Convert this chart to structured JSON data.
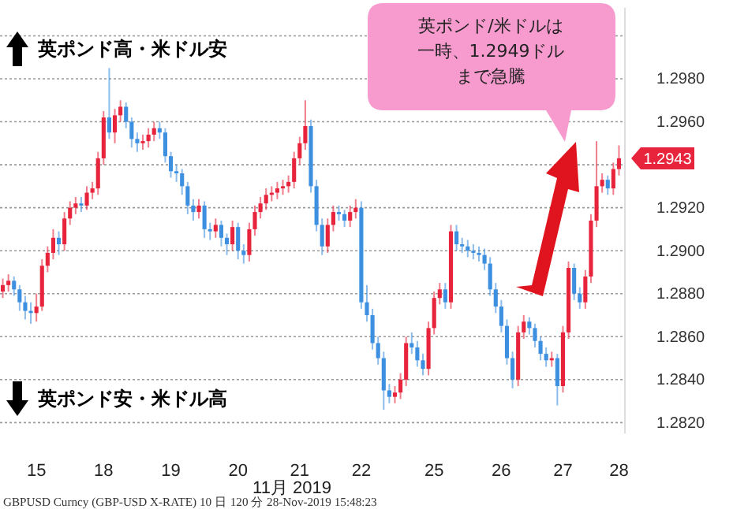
{
  "chart_data": {
    "type": "candlestick",
    "categories": [
      null,
      null,
      null,
      null,
      null,
      null,
      "15",
      null,
      null,
      null,
      null,
      null,
      null,
      null,
      null,
      null,
      null,
      null,
      "18",
      null,
      null,
      null,
      null,
      null,
      null,
      null,
      null,
      null,
      null,
      null,
      "19",
      null,
      null,
      null,
      null,
      null,
      null,
      null,
      null,
      null,
      null,
      null,
      "20",
      null,
      null,
      null,
      null,
      null,
      null,
      null,
      null,
      null,
      null,
      "21",
      null,
      null,
      null,
      null,
      null,
      null,
      null,
      null,
      null,
      null,
      "22",
      null,
      null,
      null,
      null,
      null,
      null,
      null,
      null,
      null,
      null,
      null,
      null,
      "25",
      null,
      null,
      null,
      null,
      null,
      null,
      null,
      null,
      null,
      null,
      null,
      "26",
      null,
      null,
      null,
      null,
      null,
      null,
      null,
      null,
      null,
      null,
      "27",
      null,
      null,
      null,
      null,
      null,
      null,
      null,
      null,
      null,
      "28"
    ],
    "ohlc": [
      [
        1.2881,
        1.2887,
        1.2878,
        1.2884
      ],
      [
        1.2884,
        1.2889,
        1.2881,
        1.2886
      ],
      [
        1.2886,
        1.2888,
        1.2879,
        1.2882
      ],
      [
        1.2882,
        1.2884,
        1.2872,
        1.2876
      ],
      [
        1.2876,
        1.2879,
        1.2868,
        1.2872
      ],
      [
        1.2872,
        1.2876,
        1.2866,
        1.2871
      ],
      [
        1.2871,
        1.288,
        1.2867,
        1.2874
      ],
      [
        1.2874,
        1.2896,
        1.2872,
        1.2893
      ],
      [
        1.2893,
        1.2902,
        1.289,
        1.2899
      ],
      [
        1.2899,
        1.291,
        1.2896,
        1.2906
      ],
      [
        1.2906,
        1.2909,
        1.2898,
        1.2903
      ],
      [
        1.2903,
        1.2918,
        1.29,
        1.2915
      ],
      [
        1.2915,
        1.2923,
        1.2912,
        1.292
      ],
      [
        1.292,
        1.2925,
        1.2917,
        1.2922
      ],
      [
        1.2922,
        1.2925,
        1.2918,
        1.2921
      ],
      [
        1.2921,
        1.293,
        1.2919,
        1.2927
      ],
      [
        1.2927,
        1.2932,
        1.2924,
        1.2929
      ],
      [
        1.2929,
        1.2946,
        1.2926,
        1.2943
      ],
      [
        1.2943,
        1.2965,
        1.294,
        1.2962
      ],
      [
        1.2962,
        1.2985,
        1.2952,
        1.2955
      ],
      [
        1.2955,
        1.2966,
        1.295,
        1.2963
      ],
      [
        1.2963,
        1.297,
        1.296,
        1.2967
      ],
      [
        1.2967,
        1.2969,
        1.2957,
        1.296
      ],
      [
        1.296,
        1.2962,
        1.2948,
        1.2952
      ],
      [
        1.2952,
        1.2955,
        1.2946,
        1.295
      ],
      [
        1.295,
        1.2954,
        1.2947,
        1.2951
      ],
      [
        1.2951,
        1.2957,
        1.2948,
        1.2954
      ],
      [
        1.2954,
        1.296,
        1.2951,
        1.2957
      ],
      [
        1.2957,
        1.296,
        1.2952,
        1.2955
      ],
      [
        1.2955,
        1.2957,
        1.2941,
        1.2944
      ],
      [
        1.2944,
        1.2946,
        1.2934,
        1.2937
      ],
      [
        1.2937,
        1.294,
        1.2932,
        1.2936
      ],
      [
        1.2936,
        1.2938,
        1.2926,
        1.293
      ],
      [
        1.293,
        1.2932,
        1.2917,
        1.2921
      ],
      [
        1.2921,
        1.2924,
        1.2914,
        1.2918
      ],
      [
        1.2918,
        1.2924,
        1.2915,
        1.2921
      ],
      [
        1.2921,
        1.2923,
        1.2906,
        1.291
      ],
      [
        1.291,
        1.2913,
        1.2905,
        1.2909
      ],
      [
        1.2909,
        1.2915,
        1.2906,
        1.2912
      ],
      [
        1.2912,
        1.2914,
        1.2902,
        1.2906
      ],
      [
        1.2906,
        1.2908,
        1.2898,
        1.2903
      ],
      [
        1.2903,
        1.2914,
        1.29,
        1.2911
      ],
      [
        1.2911,
        1.2913,
        1.2896,
        1.29
      ],
      [
        1.29,
        1.2903,
        1.2894,
        1.2898
      ],
      [
        1.2898,
        1.2913,
        1.2895,
        1.291
      ],
      [
        1.291,
        1.2921,
        1.2907,
        1.2918
      ],
      [
        1.2918,
        1.2925,
        1.2915,
        1.2922
      ],
      [
        1.2922,
        1.2929,
        1.2919,
        1.2926
      ],
      [
        1.2926,
        1.293,
        1.2923,
        1.2927
      ],
      [
        1.2927,
        1.2932,
        1.2924,
        1.2929
      ],
      [
        1.2929,
        1.2933,
        1.2926,
        1.293
      ],
      [
        1.293,
        1.2935,
        1.2927,
        1.2932
      ],
      [
        1.2932,
        1.2946,
        1.2929,
        1.2943
      ],
      [
        1.2943,
        1.2953,
        1.294,
        1.295
      ],
      [
        1.295,
        1.297,
        1.2947,
        1.2958
      ],
      [
        1.2958,
        1.2961,
        1.2927,
        1.293
      ],
      [
        1.293,
        1.2933,
        1.2909,
        1.2912
      ],
      [
        1.2912,
        1.2915,
        1.2898,
        1.2902
      ],
      [
        1.2902,
        1.2915,
        1.2899,
        1.2912
      ],
      [
        1.2912,
        1.2921,
        1.2909,
        1.2918
      ],
      [
        1.2918,
        1.2921,
        1.2914,
        1.2917
      ],
      [
        1.2917,
        1.2919,
        1.2911,
        1.2914
      ],
      [
        1.2914,
        1.2921,
        1.2911,
        1.2918
      ],
      [
        1.2918,
        1.2924,
        1.2915,
        1.292
      ],
      [
        1.292,
        1.2923,
        1.2873,
        1.2876
      ],
      [
        1.2876,
        1.2884,
        1.2867,
        1.287
      ],
      [
        1.287,
        1.2873,
        1.2854,
        1.2857
      ],
      [
        1.2857,
        1.286,
        1.2847,
        1.285
      ],
      [
        1.285,
        1.2853,
        1.2826,
        1.2835
      ],
      [
        1.2835,
        1.2838,
        1.2829,
        1.2832
      ],
      [
        1.2832,
        1.2837,
        1.2829,
        1.2834
      ],
      [
        1.2834,
        1.2843,
        1.2831,
        1.284
      ],
      [
        1.284,
        1.286,
        1.2837,
        1.2857
      ],
      [
        1.2857,
        1.2862,
        1.2852,
        1.2855
      ],
      [
        1.2855,
        1.2858,
        1.2846,
        1.2849
      ],
      [
        1.2849,
        1.2852,
        1.2842,
        1.2845
      ],
      [
        1.2845,
        1.2867,
        1.2842,
        1.2864
      ],
      [
        1.2864,
        1.2881,
        1.2861,
        1.2878
      ],
      [
        1.2878,
        1.2885,
        1.2875,
        1.2882
      ],
      [
        1.2882,
        1.2885,
        1.2873,
        1.2876
      ],
      [
        1.2876,
        1.2912,
        1.2873,
        1.2909
      ],
      [
        1.2909,
        1.2912,
        1.29,
        1.2903
      ],
      [
        1.2903,
        1.2906,
        1.2899,
        1.2902
      ],
      [
        1.2902,
        1.2905,
        1.2897,
        1.29
      ],
      [
        1.29,
        1.2903,
        1.2896,
        1.2899
      ],
      [
        1.2899,
        1.2902,
        1.2895,
        1.2898
      ],
      [
        1.2898,
        1.2901,
        1.2891,
        1.2894
      ],
      [
        1.2894,
        1.2897,
        1.2879,
        1.2882
      ],
      [
        1.2882,
        1.2885,
        1.2871,
        1.2874
      ],
      [
        1.2874,
        1.2877,
        1.2862,
        1.2865
      ],
      [
        1.2865,
        1.2868,
        1.2847,
        1.285
      ],
      [
        1.285,
        1.2853,
        1.2836,
        1.284
      ],
      [
        1.284,
        1.2865,
        1.2837,
        1.2862
      ],
      [
        1.2862,
        1.287,
        1.2859,
        1.2867
      ],
      [
        1.2867,
        1.2869,
        1.2861,
        1.2864
      ],
      [
        1.2864,
        1.2866,
        1.2855,
        1.2858
      ],
      [
        1.2858,
        1.286,
        1.2849,
        1.2852
      ],
      [
        1.2852,
        1.2855,
        1.2846,
        1.2849
      ],
      [
        1.2849,
        1.2853,
        1.2846,
        1.285
      ],
      [
        1.285,
        1.2852,
        1.2828,
        1.2837
      ],
      [
        1.2837,
        1.2865,
        1.2834,
        1.2862
      ],
      [
        1.2862,
        1.2895,
        1.2859,
        1.2892
      ],
      [
        1.2892,
        1.2894,
        1.2877,
        1.288
      ],
      [
        1.288,
        1.2883,
        1.2873,
        1.2876
      ],
      [
        1.2876,
        1.2891,
        1.2873,
        1.2888
      ],
      [
        1.2888,
        1.2917,
        1.2885,
        1.2914
      ],
      [
        1.2914,
        1.2951,
        1.2911,
        1.293
      ],
      [
        1.293,
        1.2936,
        1.2927,
        1.2933
      ],
      [
        1.2933,
        1.2935,
        1.2926,
        1.2929
      ],
      [
        1.2929,
        1.2941,
        1.2926,
        1.2938
      ],
      [
        1.2938,
        1.2949,
        1.2935,
        1.2943
      ]
    ],
    "ylim": [
      1.2815,
      1.3013
    ],
    "yticks": [
      {
        "value": 1.282,
        "label": "1.2820"
      },
      {
        "value": 1.284,
        "label": "1.2840"
      },
      {
        "value": 1.286,
        "label": "1.2860"
      },
      {
        "value": 1.288,
        "label": "1.2880"
      },
      {
        "value": 1.29,
        "label": "1.2900"
      },
      {
        "value": 1.292,
        "label": "1.2920"
      },
      {
        "value": 1.294,
        "label": null
      },
      {
        "value": 1.296,
        "label": "1.2960"
      },
      {
        "value": 1.298,
        "label": "1.2980"
      },
      {
        "value": 1.3,
        "label": null
      }
    ],
    "grid": "y",
    "xlabel": "11月 2019",
    "annotations": [
      "英ポンド高・米ドル安",
      "英ポンド安・米ドル高",
      "英ポンド/米ドルは一時、1.2949ドルまで急騰",
      "GBPUSD Curncy (GBP-USD X-RATE) 10 日 120 分   28-Nov-2019 15:48:23",
      {
        "text": "1.2943",
        "x": "28",
        "y": 1.2943
      }
    ]
  }
}
